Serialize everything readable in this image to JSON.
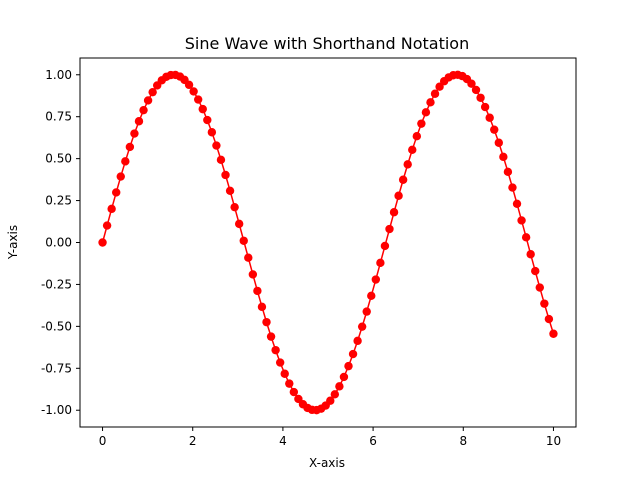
{
  "chart_data": {
    "type": "line",
    "title": "Sine Wave with Shorthand Notation",
    "xlabel": "X-axis",
    "ylabel": "Y-axis",
    "xlim": [
      -0.5,
      10.5
    ],
    "ylim": [
      -1.1,
      1.1
    ],
    "x_ticks": [
      "0",
      "2",
      "4",
      "6",
      "8",
      "10"
    ],
    "y_ticks": [
      "1.00",
      "0.75",
      "0.50",
      "0.25",
      "0.00",
      "-0.25",
      "-0.50",
      "-0.75",
      "-1.00"
    ],
    "grid": false,
    "series": [
      {
        "function": "y = sin(x)",
        "x_start": 0,
        "x_end": 10,
        "num_points": 100,
        "color": "#ff0000",
        "line_style": "solid",
        "marker": "circle"
      }
    ]
  }
}
